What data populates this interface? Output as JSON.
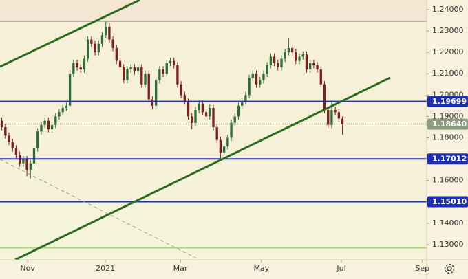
{
  "chart_data": {
    "type": "candlestick",
    "categories": [
      null,
      null,
      null,
      null,
      null,
      null,
      null,
      null,
      null,
      null,
      null,
      null,
      null,
      null,
      null,
      null,
      null,
      null,
      null,
      null,
      null,
      null,
      null,
      null,
      null,
      null,
      null,
      null,
      null,
      null,
      null,
      null,
      null,
      null,
      null,
      null,
      null,
      null,
      null,
      null,
      null,
      null,
      null,
      null,
      null,
      null,
      null,
      null,
      null,
      null,
      null,
      null,
      null,
      null,
      null,
      null,
      null,
      null,
      null,
      null,
      null,
      null,
      null,
      null,
      null,
      null,
      null,
      null,
      null,
      null,
      null,
      null,
      null,
      null,
      null,
      null,
      null,
      null,
      null,
      null,
      null,
      null,
      null,
      null,
      null,
      null,
      null,
      null,
      null,
      null,
      null,
      null,
      null,
      null,
      null,
      null
    ],
    "open": [
      1.188,
      1.185,
      1.181,
      1.178,
      1.175,
      1.172,
      1.168,
      1.17,
      1.165,
      1.168,
      1.175,
      1.183,
      1.186,
      1.188,
      1.184,
      1.186,
      1.19,
      1.192,
      1.194,
      1.195,
      1.21,
      1.215,
      1.213,
      1.212,
      1.217,
      1.226,
      1.224,
      1.22,
      1.224,
      1.228,
      1.232,
      1.226,
      1.222,
      1.216,
      1.213,
      1.207,
      1.212,
      1.213,
      1.211,
      1.213,
      1.205,
      1.21,
      1.198,
      1.195,
      1.207,
      1.212,
      1.21,
      1.215,
      1.216,
      1.214,
      1.205,
      1.2,
      1.197,
      1.19,
      1.187,
      1.193,
      1.196,
      1.192,
      1.19,
      1.194,
      1.185,
      1.179,
      1.173,
      1.176,
      1.18,
      1.187,
      1.19,
      1.195,
      1.197,
      1.2,
      1.208,
      1.21,
      1.205,
      1.207,
      1.21,
      1.214,
      1.218,
      1.215,
      1.213,
      1.217,
      1.22,
      1.222,
      1.22,
      1.216,
      1.218,
      1.219,
      1.212,
      1.215,
      1.214,
      1.212,
      1.205,
      1.193,
      1.186,
      1.193,
      1.192,
      1.189
    ],
    "high": [
      1.1895,
      1.1865,
      1.1825,
      1.1795,
      1.1765,
      1.1735,
      1.1715,
      1.1715,
      1.1695,
      1.1765,
      1.1845,
      1.1875,
      1.1895,
      1.1895,
      1.1875,
      1.1915,
      1.1935,
      1.1955,
      1.1965,
      1.2115,
      1.2165,
      1.2165,
      1.2145,
      1.2185,
      1.2275,
      1.2275,
      1.2255,
      1.2255,
      1.2295,
      1.2345,
      1.2335,
      1.2275,
      1.2235,
      1.2175,
      1.2145,
      1.2135,
      1.2145,
      1.2145,
      1.2145,
      1.2145,
      1.2115,
      1.2115,
      1.1995,
      1.2085,
      1.2135,
      1.2135,
      1.2165,
      1.2175,
      1.2175,
      1.2155,
      1.2065,
      1.2015,
      1.1985,
      1.1915,
      1.1945,
      1.1975,
      1.1975,
      1.1935,
      1.1955,
      1.1955,
      1.1865,
      1.1805,
      1.1775,
      1.1815,
      1.1885,
      1.1915,
      1.1965,
      1.1985,
      1.2015,
      1.2095,
      1.2115,
      1.2115,
      1.2085,
      1.2115,
      1.2155,
      1.2195,
      1.2195,
      1.2165,
      1.2185,
      1.2215,
      1.2265,
      1.2235,
      1.2215,
      1.2195,
      1.2205,
      1.2205,
      1.2165,
      1.2165,
      1.2155,
      1.2135,
      1.2065,
      1.1945,
      1.1975,
      1.1945,
      1.1935,
      1.19
    ],
    "low": [
      1.1835,
      1.1795,
      1.1765,
      1.1735,
      1.1705,
      1.1665,
      1.1665,
      1.162,
      1.161,
      1.1665,
      1.1735,
      1.1815,
      1.1845,
      1.1825,
      1.1825,
      1.1845,
      1.1885,
      1.1905,
      1.1925,
      1.1935,
      1.2085,
      1.2115,
      1.2105,
      1.2105,
      1.2155,
      1.2225,
      1.2185,
      1.2185,
      1.2225,
      1.2265,
      1.2245,
      1.2205,
      1.2145,
      1.2115,
      1.2055,
      1.2055,
      1.2105,
      1.2095,
      1.2095,
      1.2035,
      1.2035,
      1.1965,
      1.1935,
      1.1935,
      1.2055,
      1.2085,
      1.2085,
      1.2135,
      1.2125,
      1.2035,
      1.1985,
      1.1955,
      1.1885,
      1.184,
      1.1855,
      1.1915,
      1.1905,
      1.1885,
      1.1885,
      1.1835,
      1.1775,
      1.1705,
      1.1715,
      1.1745,
      1.1785,
      1.1855,
      1.1885,
      1.1935,
      1.1955,
      1.1985,
      1.2065,
      1.2035,
      1.2035,
      1.2055,
      1.2085,
      1.2125,
      1.2135,
      1.2115,
      1.2115,
      1.2155,
      1.2185,
      1.2185,
      1.2145,
      1.2145,
      1.2165,
      1.2105,
      1.2105,
      1.2125,
      1.2105,
      1.2035,
      1.1915,
      1.1845,
      1.1845,
      1.1905,
      1.1875,
      1.1815
    ],
    "close": [
      1.185,
      1.181,
      1.178,
      1.175,
      1.172,
      1.168,
      1.17,
      1.165,
      1.168,
      1.175,
      1.183,
      1.186,
      1.188,
      1.184,
      1.186,
      1.19,
      1.192,
      1.194,
      1.195,
      1.21,
      1.215,
      1.213,
      1.212,
      1.217,
      1.226,
      1.224,
      1.22,
      1.224,
      1.228,
      1.232,
      1.226,
      1.222,
      1.216,
      1.213,
      1.207,
      1.212,
      1.213,
      1.211,
      1.213,
      1.205,
      1.21,
      1.198,
      1.195,
      1.207,
      1.212,
      1.21,
      1.215,
      1.216,
      1.214,
      1.205,
      1.2,
      1.197,
      1.19,
      1.187,
      1.193,
      1.196,
      1.192,
      1.19,
      1.194,
      1.185,
      1.179,
      1.173,
      1.176,
      1.18,
      1.187,
      1.19,
      1.195,
      1.197,
      1.2,
      1.208,
      1.21,
      1.205,
      1.207,
      1.21,
      1.214,
      1.218,
      1.215,
      1.213,
      1.217,
      1.22,
      1.222,
      1.22,
      1.216,
      1.218,
      1.219,
      1.212,
      1.215,
      1.214,
      1.212,
      1.205,
      1.193,
      1.186,
      1.193,
      1.192,
      1.189,
      1.1864
    ],
    "up_color": "#2e6e35",
    "down_color": "#7b1f1f",
    "xlim": [
      -0.5,
      118.5
    ],
    "xticks": [
      {
        "value": 7.2,
        "label": "Nov"
      },
      {
        "value": 28.9,
        "label": "2021"
      },
      {
        "value": 49.8,
        "label": "Mar"
      },
      {
        "value": 72.4,
        "label": "May"
      },
      {
        "value": 94.7,
        "label": "Jul"
      },
      {
        "value": 117.3,
        "label": "Sep"
      }
    ],
    "ylim": [
      1.1229,
      1.2445
    ],
    "yticks": [
      {
        "value": 1.24,
        "label": "1.24000"
      },
      {
        "value": 1.23,
        "label": "1.23000"
      },
      {
        "value": 1.22,
        "label": "1.22000"
      },
      {
        "value": 1.21,
        "label": "1.21000"
      },
      {
        "value": 1.2,
        "label": "1.20000"
      },
      {
        "value": 1.19,
        "label": "1.19000"
      },
      {
        "value": 1.18,
        "label": "1.18000"
      },
      {
        "value": 1.17,
        "label": "1.17000"
      },
      {
        "value": 1.16,
        "label": "1.16000"
      },
      {
        "value": 1.15,
        "label": "1.15000"
      },
      {
        "value": 1.14,
        "label": "1.14000"
      },
      {
        "value": 1.13,
        "label": "1.13000"
      }
    ],
    "levels": [
      {
        "value": 1.19699,
        "label": "1.19699"
      },
      {
        "value": 1.17012,
        "label": "1.17012"
      },
      {
        "value": 1.1501,
        "label": "1.15010"
      }
    ],
    "level_color": "#1c2fb0",
    "last_price": {
      "value": 1.1864,
      "label": "1.18640"
    },
    "last_price_color": "#8c9a7e",
    "reference_lines": [
      1.2345,
      1.1284
    ]
  }
}
